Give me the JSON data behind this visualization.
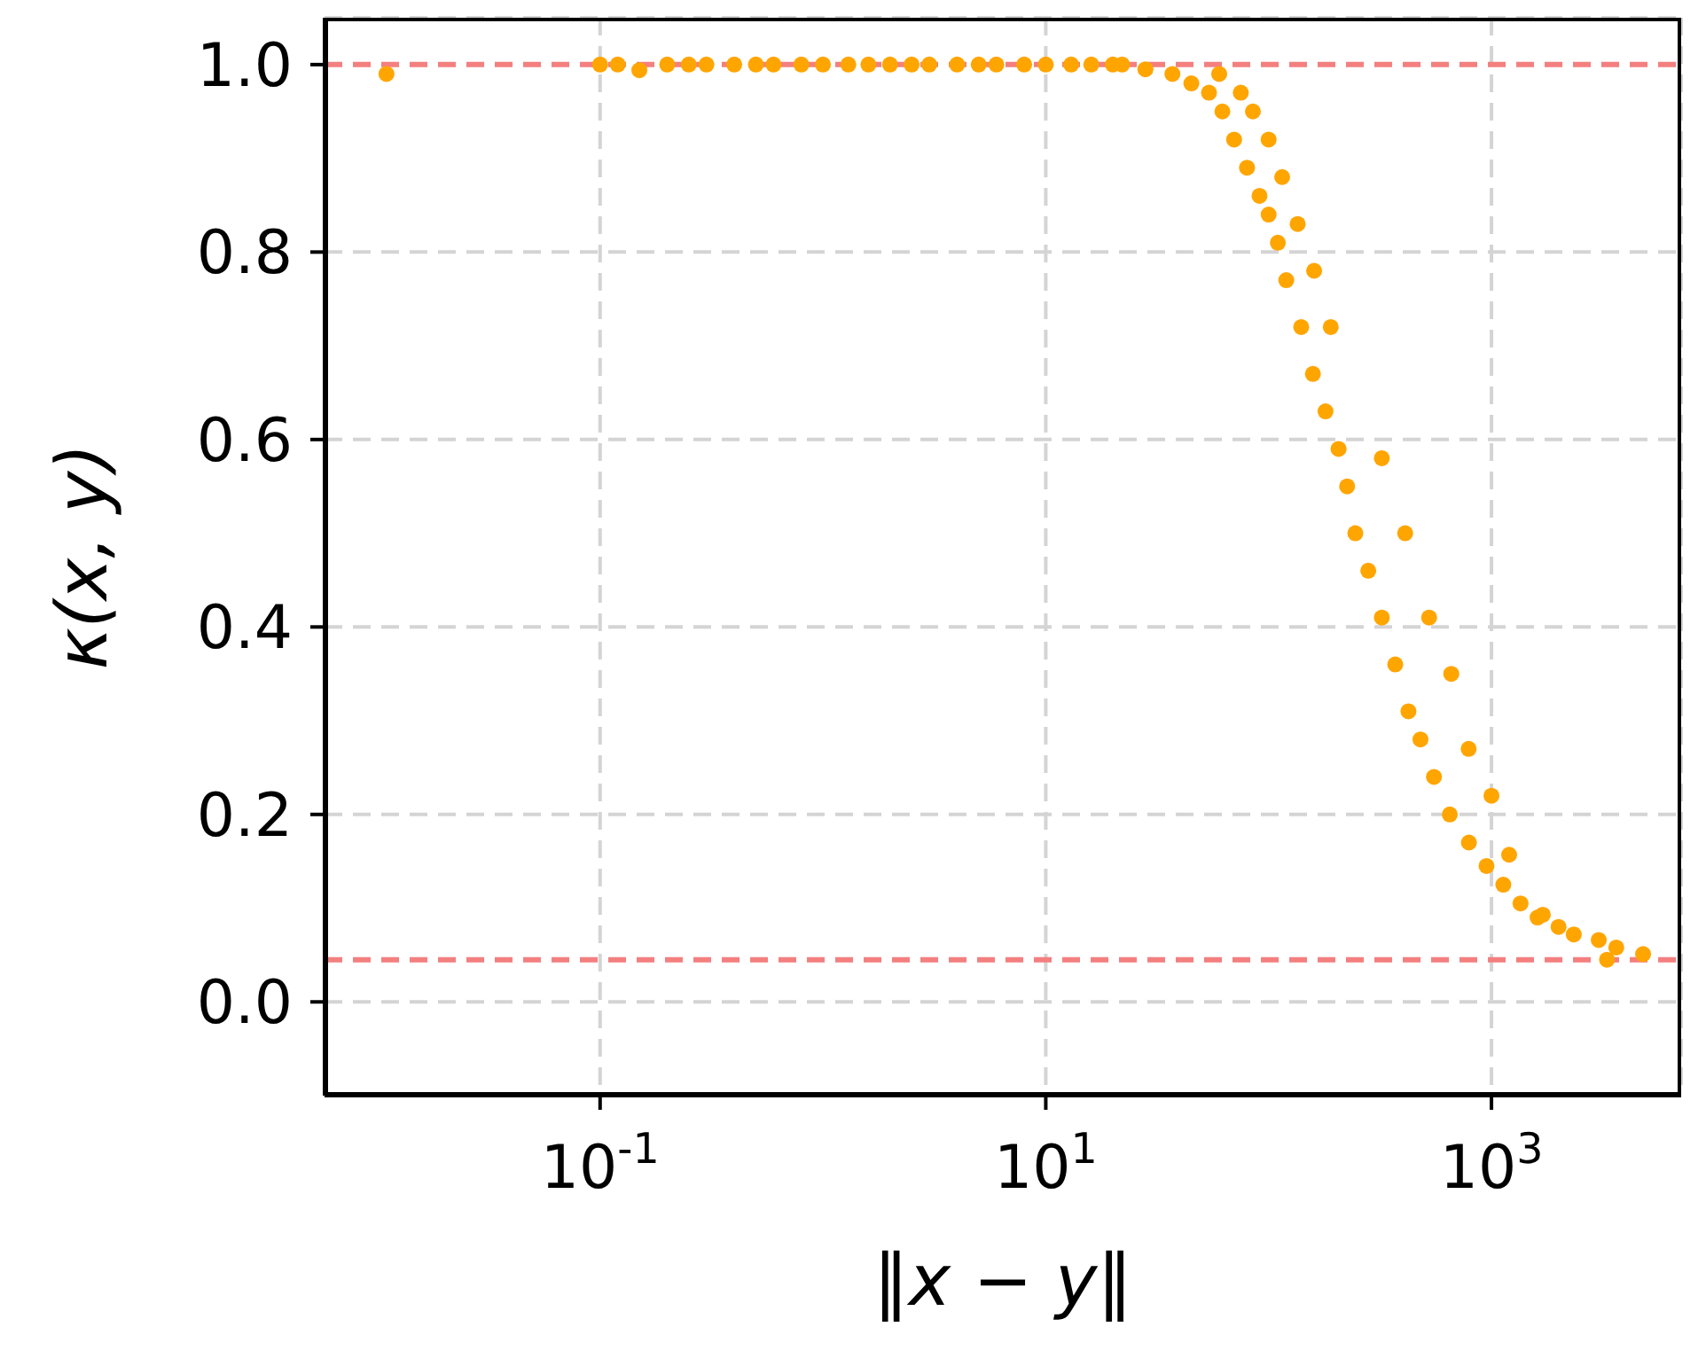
{
  "chart_data": {
    "type": "scatter",
    "xlabel": "‖x − y‖",
    "ylabel": "κ(x, y)",
    "log": "x",
    "grid": true,
    "marker": "circle",
    "xlim": [
      0.0058,
      7100
    ],
    "xticks": [
      {
        "value": 0.1,
        "label": "10$^{-1}$"
      },
      {
        "value": 10,
        "label": "10$^{1}$"
      },
      {
        "value": 1000,
        "label": "10$^{3}$"
      }
    ],
    "ylim": [
      -0.1,
      1.05
    ],
    "yticks": [
      {
        "value": 0,
        "label": "0.0"
      },
      {
        "value": 0.2,
        "label": "0.2"
      },
      {
        "value": 0.4,
        "label": "0.4"
      },
      {
        "value": 0.6,
        "label": "0.6"
      },
      {
        "value": 0.8,
        "label": "0.8"
      },
      {
        "value": 1,
        "label": "1.0"
      }
    ],
    "ref_lines": [
      {
        "axis": "y",
        "value": 1,
        "color": "#f47f7f",
        "line_style": "dashed"
      },
      {
        "axis": "y",
        "value": 0.045,
        "color": "#f47f7f",
        "line_style": "dashed"
      }
    ],
    "series": [
      {
        "color": "#ffa500",
        "x": [
          0.011,
          0.1,
          0.12,
          0.15,
          0.2,
          0.25,
          0.3,
          0.4,
          0.5,
          0.6,
          0.8,
          1,
          1.3,
          1.6,
          2,
          2.5,
          3,
          4,
          5,
          6,
          8,
          10,
          13,
          16,
          20,
          22,
          28,
          37,
          45,
          54,
          62,
          70,
          80,
          91,
          100,
          110,
          120,
          140,
          158,
          180,
          206,
          225,
          245,
          280,
          322,
          370,
          424,
          480,
          552,
          650,
          792,
          950,
          1130,
          1350,
          1610,
          2000,
          2340,
          3030,
          3630,
          4790,
          3300,
          60,
          75,
          85,
          100,
          115,
          135,
          160,
          190,
          322,
          410,
          525,
          660,
          790,
          1000,
          1200,
          1700
        ],
        "values": [
          0.99,
          1.0,
          1.0,
          0.994,
          1.0,
          1.0,
          1.0,
          1.0,
          1.0,
          1.0,
          1.0,
          1.0,
          1.0,
          1.0,
          1.0,
          1.0,
          1.0,
          1.0,
          1.0,
          1.0,
          1.0,
          1.0,
          1.0,
          1.0,
          1.0,
          1.0,
          0.995,
          0.99,
          0.98,
          0.97,
          0.95,
          0.92,
          0.89,
          0.86,
          0.84,
          0.81,
          0.77,
          0.72,
          0.67,
          0.63,
          0.59,
          0.55,
          0.5,
          0.46,
          0.41,
          0.36,
          0.31,
          0.28,
          0.24,
          0.2,
          0.17,
          0.145,
          0.125,
          0.105,
          0.09,
          0.08,
          0.072,
          0.066,
          0.058,
          0.051,
          0.045,
          0.99,
          0.97,
          0.95,
          0.92,
          0.88,
          0.83,
          0.78,
          0.72,
          0.58,
          0.5,
          0.41,
          0.35,
          0.27,
          0.22,
          0.157,
          0.093
        ]
      }
    ]
  }
}
